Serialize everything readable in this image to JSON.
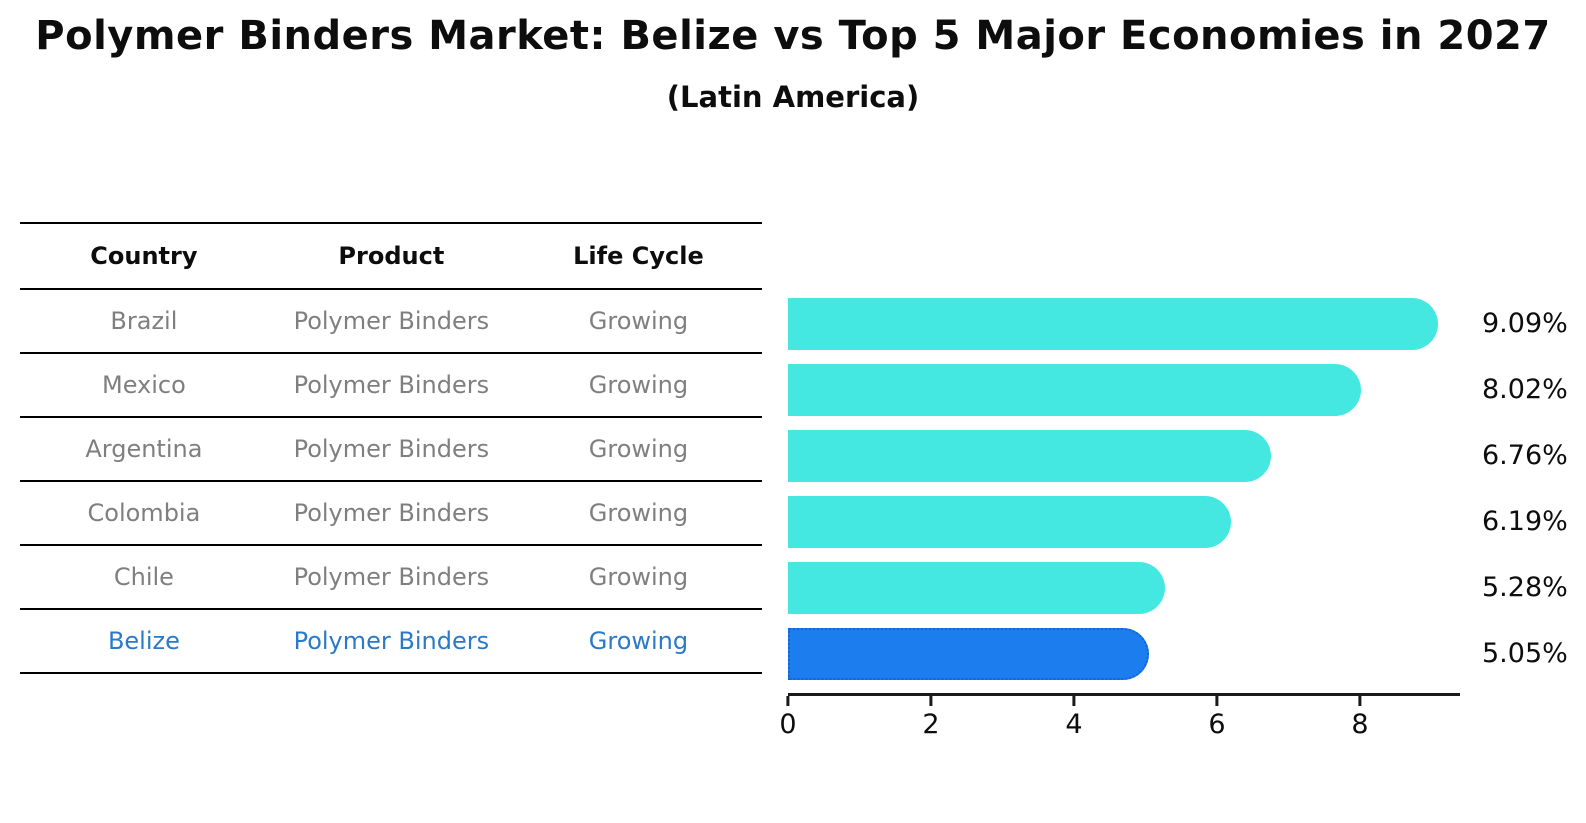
{
  "title": "Polymer Binders Market: Belize vs Top 5 Major Economies in 2027",
  "subtitle": "(Latin America)",
  "table": {
    "headers": [
      "Country",
      "Product",
      "Life Cycle"
    ],
    "rows": [
      {
        "country": "Brazil",
        "product": "Polymer Binders",
        "life_cycle": "Growing",
        "highlighted": false
      },
      {
        "country": "Mexico",
        "product": "Polymer Binders",
        "life_cycle": "Growing",
        "highlighted": false
      },
      {
        "country": "Argentina",
        "product": "Polymer Binders",
        "life_cycle": "Growing",
        "highlighted": false
      },
      {
        "country": "Colombia",
        "product": "Polymer Binders",
        "life_cycle": "Growing",
        "highlighted": false
      },
      {
        "country": "Chile",
        "product": "Polymer Binders",
        "life_cycle": "Growing",
        "highlighted": false
      },
      {
        "country": "Belize",
        "product": "Polymer Binders",
        "life_cycle": "Growing",
        "highlighted": true
      }
    ]
  },
  "chart_data": {
    "type": "bar",
    "orientation": "horizontal",
    "title": "Polymer Binders Market: Belize vs Top 5 Major Economies in 2027",
    "subtitle": "(Latin America)",
    "categories": [
      "Brazil",
      "Mexico",
      "Argentina",
      "Colombia",
      "Chile",
      "Belize"
    ],
    "values": [
      9.09,
      8.02,
      6.76,
      6.19,
      5.28,
      5.05
    ],
    "value_labels": [
      "9.09%",
      "8.02%",
      "6.76%",
      "6.19%",
      "5.28%",
      "5.05%"
    ],
    "unit": "percent",
    "xlabel": "",
    "ylabel": "",
    "xticks": [
      0,
      2,
      4,
      6,
      8
    ],
    "xlim": [
      0,
      9.4
    ],
    "grid": false,
    "legend": false,
    "highlight_index": 5
  },
  "colors": {
    "bar_default": "#45E8E1",
    "bar_highlight": "#1B7DEE",
    "bar_highlight_border": "#1263D6",
    "row_text": "#7f7f7f",
    "highlight_text": "#2A7AC9",
    "header_text": "#0d0d0d",
    "axis": "#1a1a1a"
  }
}
